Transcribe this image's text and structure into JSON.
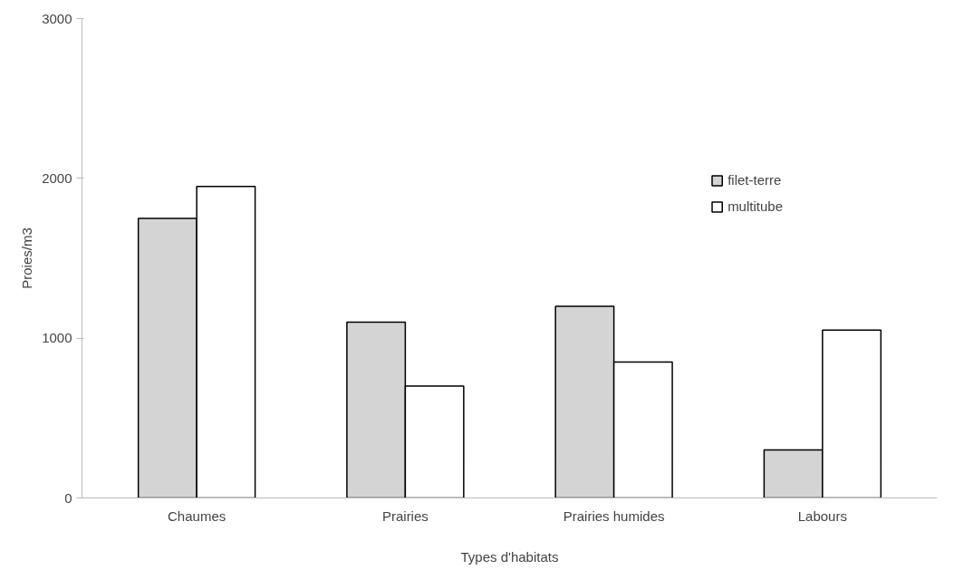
{
  "chart_data": {
    "type": "bar",
    "xlabel": "Types d'habitats",
    "ylabel": "Proies/m3",
    "categories": [
      "Chaumes",
      "Prairies",
      "Prairies humides",
      "Labours"
    ],
    "series": [
      {
        "name": "filet-terre",
        "color": "#d4d4d4",
        "values": [
          1750,
          1100,
          1200,
          300
        ]
      },
      {
        "name": "multitube",
        "color": "#ffffff",
        "values": [
          1950,
          700,
          850,
          1050
        ]
      }
    ],
    "ylim": [
      0,
      3000
    ],
    "yticks": [
      0,
      1000,
      2000,
      3000
    ],
    "grid": false,
    "legend": "top right"
  }
}
